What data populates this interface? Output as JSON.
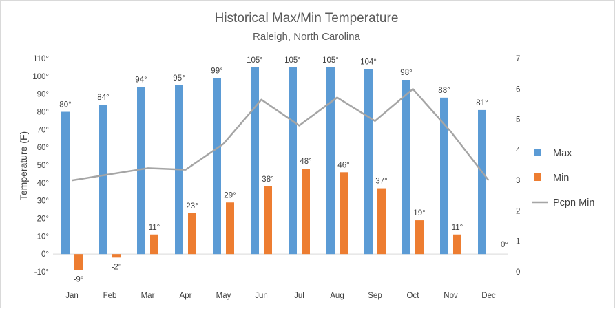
{
  "chart_data": {
    "type": "bar",
    "title": "Historical Max/Min Temperature",
    "subtitle": "Raleigh, North Carolina",
    "ylabel": "Temperature (F)",
    "categories": [
      "Jan",
      "Feb",
      "Mar",
      "Apr",
      "May",
      "Jun",
      "Jul",
      "Aug",
      "Sep",
      "Oct",
      "Nov",
      "Dec"
    ],
    "ylim": [
      -10,
      110
    ],
    "yticks": [
      "-10°",
      "0°",
      "10°",
      "20°",
      "30°",
      "40°",
      "50°",
      "60°",
      "70°",
      "80°",
      "90°",
      "100°",
      "110°"
    ],
    "y2lim": [
      0,
      7
    ],
    "y2ticks": [
      "0",
      "1",
      "2",
      "3",
      "4",
      "5",
      "6",
      "7"
    ],
    "legend_position": "right",
    "grid": "off",
    "series": [
      {
        "name": "Max",
        "kind": "bar",
        "color": "#5b9bd5",
        "values": [
          80,
          84,
          94,
          95,
          99,
          105,
          105,
          105,
          104,
          98,
          88,
          81
        ],
        "labels": [
          "80°",
          "84°",
          "94°",
          "95°",
          "99°",
          "105°",
          "105°",
          "105°",
          "104°",
          "98°",
          "88°",
          "81°"
        ]
      },
      {
        "name": "Min",
        "kind": "bar",
        "color": "#ed7d31",
        "values": [
          -9,
          -2,
          11,
          23,
          29,
          38,
          48,
          46,
          37,
          19,
          11,
          0
        ],
        "labels": [
          "-9°",
          "-2°",
          "11°",
          "23°",
          "29°",
          "38°",
          "48°",
          "46°",
          "37°",
          "19°",
          "11°",
          "0°"
        ]
      },
      {
        "name": "Pcpn Min",
        "kind": "line",
        "axis": "secondary",
        "color": "#a5a5a5",
        "values": [
          3.0,
          3.2,
          3.4,
          3.35,
          4.2,
          5.65,
          4.8,
          5.72,
          4.95,
          6.0,
          4.6,
          3.0
        ]
      }
    ]
  }
}
